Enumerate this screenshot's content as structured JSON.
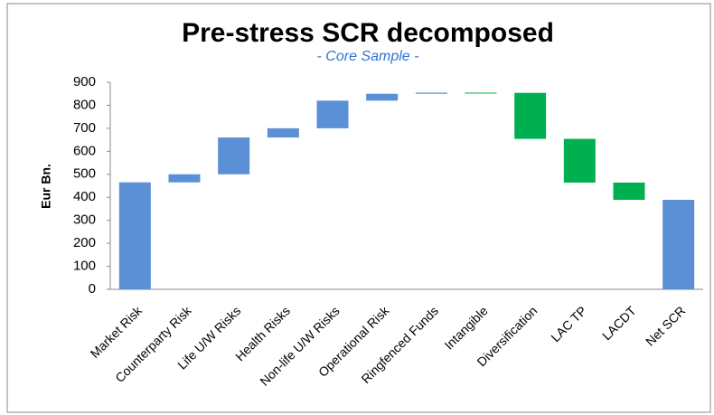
{
  "chart_data": {
    "type": "waterfall",
    "title": "Pre-stress SCR decomposed",
    "subtitle": "- Core Sample -",
    "y_label": "Eur Bn.",
    "categories": [
      "Market Risk",
      "Counterparty Risk",
      "Life U/W Risks",
      "Health Risks",
      "Non-life U/W Risks",
      "Operational Risk",
      "Ringfenced Funds",
      "Intangible",
      "Diversification",
      "LAC TP",
      "LACDT",
      "Net SCR"
    ],
    "values": [
      465,
      35,
      160,
      40,
      120,
      30,
      5,
      -1,
      -200,
      -190,
      -75,
      389
    ],
    "total_index": 11,
    "increase_color": "#5b8fd6",
    "decrease_color": "#00b050",
    "total_color": "#5b8fd6",
    "ylim": [
      0,
      900
    ],
    "yticks": [
      0,
      100,
      200,
      300,
      400,
      500,
      600,
      700,
      800,
      900
    ],
    "grid": false
  }
}
